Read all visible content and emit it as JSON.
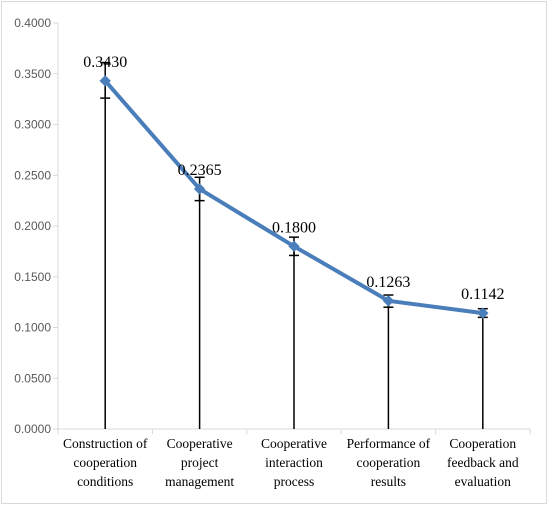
{
  "chart_data": {
    "type": "line",
    "categories": [
      [
        "Construction of",
        "cooperation",
        "conditions"
      ],
      [
        "Cooperative",
        "project",
        "management"
      ],
      [
        "Cooperative",
        "interaction",
        "process"
      ],
      [
        "Performance of",
        "cooperation",
        "results"
      ],
      [
        "Cooperation",
        "feedback and",
        "evaluation"
      ]
    ],
    "series": [
      {
        "values": [
          0.343,
          0.2365,
          0.18,
          0.1263,
          0.1142
        ],
        "data_labels": [
          "0.3430",
          "0.2365",
          "0.1800",
          "0.1263",
          "0.1142"
        ],
        "error_upper": [
          0.361,
          0.248,
          0.189,
          0.132,
          0.1185
        ],
        "error_lower": [
          0.326,
          0.225,
          0.171,
          0.12,
          0.11
        ],
        "color": "#4a7ebb",
        "marker": "diamond"
      }
    ],
    "yticks": [
      "0.0000",
      "0.0500",
      "0.1000",
      "0.1500",
      "0.2000",
      "0.2500",
      "0.3000",
      "0.3500",
      "0.4000"
    ],
    "ylim": [
      0,
      0.4
    ],
    "grid": false,
    "drop_lines": true,
    "drop_line_color": "#000000",
    "axis_color": "#d9d9d9"
  }
}
